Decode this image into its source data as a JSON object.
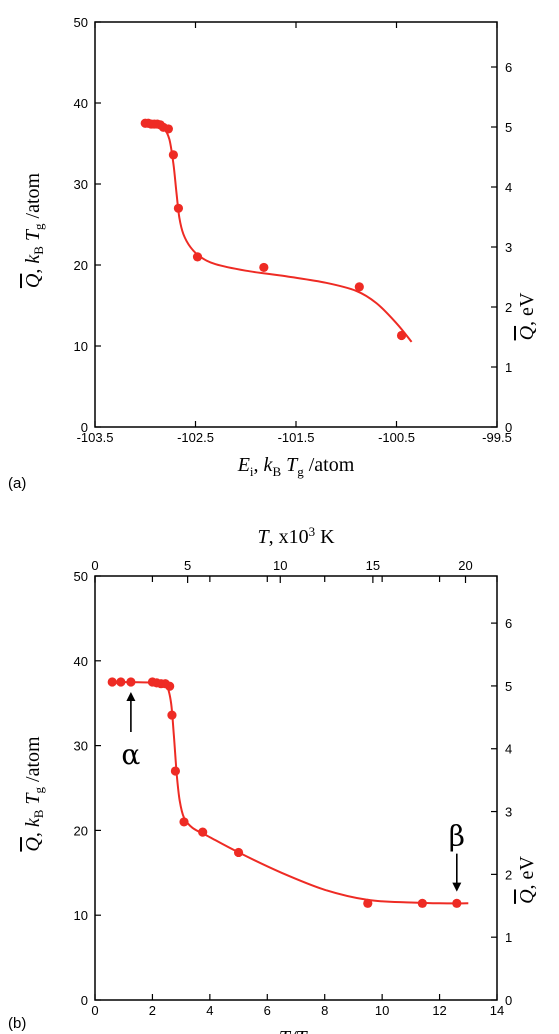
{
  "colors": {
    "series": "#ee2b24",
    "axis": "#000000"
  },
  "chart_data": [
    {
      "type": "scatter",
      "panel_label": "(a)",
      "xlabel": "E_i, k_B T_g /atom",
      "ylabel": "Q̄, k_B T_g /atom",
      "y2label": "Q̄, eV",
      "xlim": [
        -103.5,
        -99.5
      ],
      "ylim": [
        0,
        50
      ],
      "y2lim": [
        0,
        6.75
      ],
      "xticks": [
        "-103.5",
        "-102.5",
        "-101.5",
        "-100.5",
        "-99.5"
      ],
      "xtick_values": [
        -103.5,
        -102.5,
        -101.5,
        -100.5,
        -99.5
      ],
      "yticks": [
        "0",
        "10",
        "20",
        "30",
        "40",
        "50"
      ],
      "ytick_values": [
        0,
        10,
        20,
        30,
        40,
        50
      ],
      "y2ticks": [
        "0",
        "1",
        "2",
        "3",
        "4",
        "5",
        "6"
      ],
      "y2tick_values": [
        0,
        1,
        2,
        3,
        4,
        5,
        6
      ],
      "grid": false,
      "points": {
        "x": [
          -103.0,
          -102.97,
          -102.94,
          -102.91,
          -102.88,
          -102.85,
          -102.82,
          -102.77,
          -102.72,
          -102.67,
          -102.48,
          -101.82,
          -100.87,
          -100.45
        ],
        "y": [
          37.5,
          37.5,
          37.4,
          37.4,
          37.4,
          37.3,
          37.0,
          36.8,
          33.6,
          27.0,
          21.0,
          19.7,
          17.3,
          11.3
        ]
      },
      "fit_curve": {
        "x": [
          -103.02,
          -102.9,
          -102.82,
          -102.76,
          -102.72,
          -102.69,
          -102.66,
          -102.62,
          -102.55,
          -102.45,
          -102.3,
          -102.0,
          -101.6,
          -101.2,
          -100.9,
          -100.7,
          -100.5,
          -100.35
        ],
        "y": [
          37.5,
          37.4,
          37.0,
          35.5,
          32.5,
          29.0,
          25.8,
          23.8,
          22.2,
          21.0,
          20.1,
          19.3,
          18.6,
          17.8,
          16.8,
          15.3,
          12.8,
          10.5
        ]
      }
    },
    {
      "type": "scatter",
      "panel_label": "(b)",
      "xlabel": "T/T_g",
      "x2label": "T, x10³ K",
      "ylabel": "Q̄, k_B T_g /atom",
      "y2label": "Q̄, eV",
      "xlim": [
        0,
        14
      ],
      "x2lim": [
        0,
        21.7
      ],
      "ylim": [
        0,
        50
      ],
      "y2lim": [
        0,
        6.75
      ],
      "xticks": [
        "0",
        "2",
        "4",
        "6",
        "8",
        "10",
        "12",
        "14"
      ],
      "xtick_values": [
        0,
        2,
        4,
        6,
        8,
        10,
        12,
        14
      ],
      "x2ticks": [
        "0",
        "5",
        "10",
        "15",
        "20"
      ],
      "x2tick_values": [
        0,
        5,
        10,
        15,
        20
      ],
      "yticks": [
        "0",
        "10",
        "20",
        "30",
        "40",
        "50"
      ],
      "ytick_values": [
        0,
        10,
        20,
        30,
        40,
        50
      ],
      "y2ticks": [
        "0",
        "1",
        "2",
        "3",
        "4",
        "5",
        "6"
      ],
      "y2tick_values": [
        0,
        1,
        2,
        3,
        4,
        5,
        6
      ],
      "grid": false,
      "points": {
        "x": [
          0.6,
          0.9,
          1.25,
          2.0,
          2.15,
          2.3,
          2.45,
          2.6,
          2.68,
          2.8,
          3.1,
          3.75,
          5.0,
          9.5,
          11.4,
          12.6
        ],
        "y": [
          37.5,
          37.5,
          37.5,
          37.5,
          37.4,
          37.3,
          37.3,
          37.0,
          33.6,
          27.0,
          21.0,
          19.8,
          17.4,
          11.4,
          11.4,
          11.4
        ]
      },
      "fit_curve": {
        "x": [
          0.5,
          2.2,
          2.5,
          2.65,
          2.75,
          2.85,
          2.95,
          3.1,
          3.4,
          4.0,
          5.0,
          6.5,
          8.0,
          9.5,
          11.0,
          12.0,
          13.0
        ],
        "y": [
          37.5,
          37.4,
          37.0,
          35.0,
          31.0,
          26.5,
          23.5,
          21.5,
          20.3,
          19.2,
          17.4,
          15.0,
          13.0,
          11.8,
          11.5,
          11.4,
          11.4
        ]
      },
      "annotations": [
        {
          "text": "α",
          "x": 1.25,
          "arrow_to_y": 37.5
        },
        {
          "text": "β",
          "x": 12.6,
          "arrow_to_y": 11.6
        }
      ]
    }
  ]
}
